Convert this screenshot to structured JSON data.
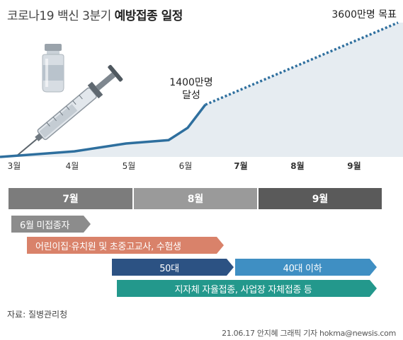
{
  "title": {
    "part1": "코로나19 백신 3분기 ",
    "part2": "예방접종 일정"
  },
  "colors": {
    "line": "#2e6f9e",
    "area": "#e6ecf1",
    "month_label": "#333333",
    "header_jul": "#7c7c7c",
    "header_aug": "#9a9a9a",
    "header_sep": "#5a5a5a",
    "arrow_gray": "#8c8c8c",
    "arrow_orange": "#d9826a",
    "arrow_navy": "#2c5283",
    "arrow_blue": "#3f8fc3",
    "arrow_teal": "#23988c"
  },
  "chart_data": {
    "type": "line",
    "title": "코로나19 백신 3분기 예방접종 일정",
    "x_tick_labels": [
      "3월",
      "4월",
      "5월",
      "6월",
      "7월",
      "8월",
      "9월"
    ],
    "y_unit": "만명",
    "series": [
      {
        "style": "solid",
        "x": [
          "3월 초",
          "3월",
          "4월",
          "5월",
          "5월 말",
          "6월 초",
          "6월 중순"
        ],
        "values": [
          0,
          30,
          150,
          360,
          450,
          780,
          1400
        ]
      },
      {
        "style": "dotted",
        "x": [
          "6월 중순",
          "9월 말"
        ],
        "values": [
          1400,
          3600
        ]
      }
    ],
    "annotations": [
      {
        "text_line1": "1400만명",
        "text_line2": "달성"
      },
      {
        "text": "3600만명 목표"
      }
    ]
  },
  "schedule": {
    "months": [
      "7월",
      "8월",
      "9월"
    ],
    "bars": [
      {
        "label": "6월 미접종자"
      },
      {
        "label": "어린이집·유치원 및 초중고교사, 수험생"
      },
      {
        "label": "50대"
      },
      {
        "label": "40대 이하"
      },
      {
        "label": "지자체 자율접종, 사업장 자체접종 등"
      }
    ]
  },
  "source": "자료: 질병관리청",
  "credit": "21.06.17 안지혜 그래픽 기자 hokma@newsis.com"
}
